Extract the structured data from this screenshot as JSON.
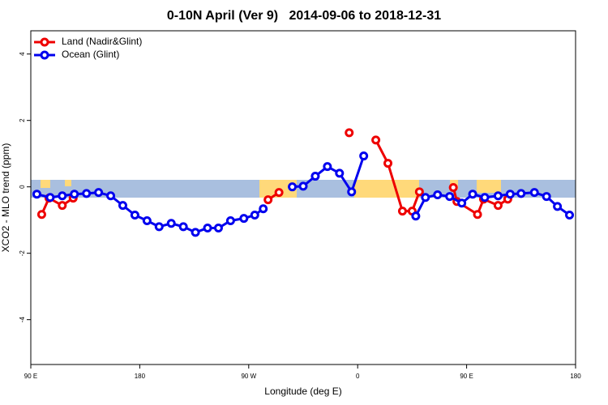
{
  "chart_data": {
    "type": "line",
    "title": "0-10N April (Ver 9)   2014-09-06 to 2018-12-31",
    "x_label": "Longitude (deg E)",
    "y_label": "XCO2 - MLO trend (ppm)",
    "xlim": [
      90,
      540
    ],
    "ylim": [
      -5.35,
      4.7
    ],
    "xticks": [
      {
        "value": 90,
        "label": "90 E"
      },
      {
        "value": 180,
        "label": "180"
      },
      {
        "value": 270,
        "label": "90 W"
      },
      {
        "value": 360,
        "label": "0"
      },
      {
        "value": 450,
        "label": "90 E"
      },
      {
        "value": 540,
        "label": "180"
      }
    ],
    "yticks": [
      -4,
      -2,
      0,
      2,
      4
    ],
    "legend": "top-left",
    "series": [
      {
        "name": "Land (Nadir&Glint)",
        "color": "#ee0000",
        "x": [
          99,
          105,
          116,
          125,
          null,
          286,
          295,
          null,
          353,
          null,
          375,
          385,
          397,
          405,
          411,
          null,
          439,
          442,
          459,
          464,
          476,
          484
        ],
        "values": [
          -0.83,
          -0.34,
          -0.56,
          -0.34,
          null,
          -0.39,
          -0.17,
          null,
          1.63,
          null,
          1.41,
          0.71,
          -0.73,
          -0.73,
          -0.15,
          null,
          -0.02,
          -0.44,
          -0.83,
          -0.37,
          -0.56,
          -0.37
        ]
      },
      {
        "name": "Ocean (Glint)",
        "color": "#0000ee",
        "x": [
          95,
          106,
          116,
          126,
          136,
          146,
          156,
          166,
          176,
          186,
          196,
          206,
          216,
          226,
          236,
          245,
          255,
          266,
          275,
          282,
          null,
          306,
          315,
          325,
          335,
          345,
          355,
          365,
          null,
          408,
          416,
          426,
          436,
          446,
          455,
          465,
          476,
          486,
          495,
          506,
          516,
          525,
          535
        ],
        "values": [
          -0.22,
          -0.32,
          -0.27,
          -0.22,
          -0.2,
          -0.17,
          -0.27,
          -0.56,
          -0.85,
          -1.02,
          -1.2,
          -1.1,
          -1.2,
          -1.37,
          -1.24,
          -1.24,
          -1.02,
          -0.95,
          -0.85,
          -0.66,
          null,
          0.0,
          0.02,
          0.32,
          0.61,
          0.41,
          -0.15,
          0.93,
          null,
          -0.88,
          -0.32,
          -0.24,
          -0.29,
          -0.49,
          -0.22,
          -0.32,
          -0.27,
          -0.22,
          -0.2,
          -0.17,
          -0.29,
          -0.59,
          -0.85
        ]
      }
    ]
  }
}
